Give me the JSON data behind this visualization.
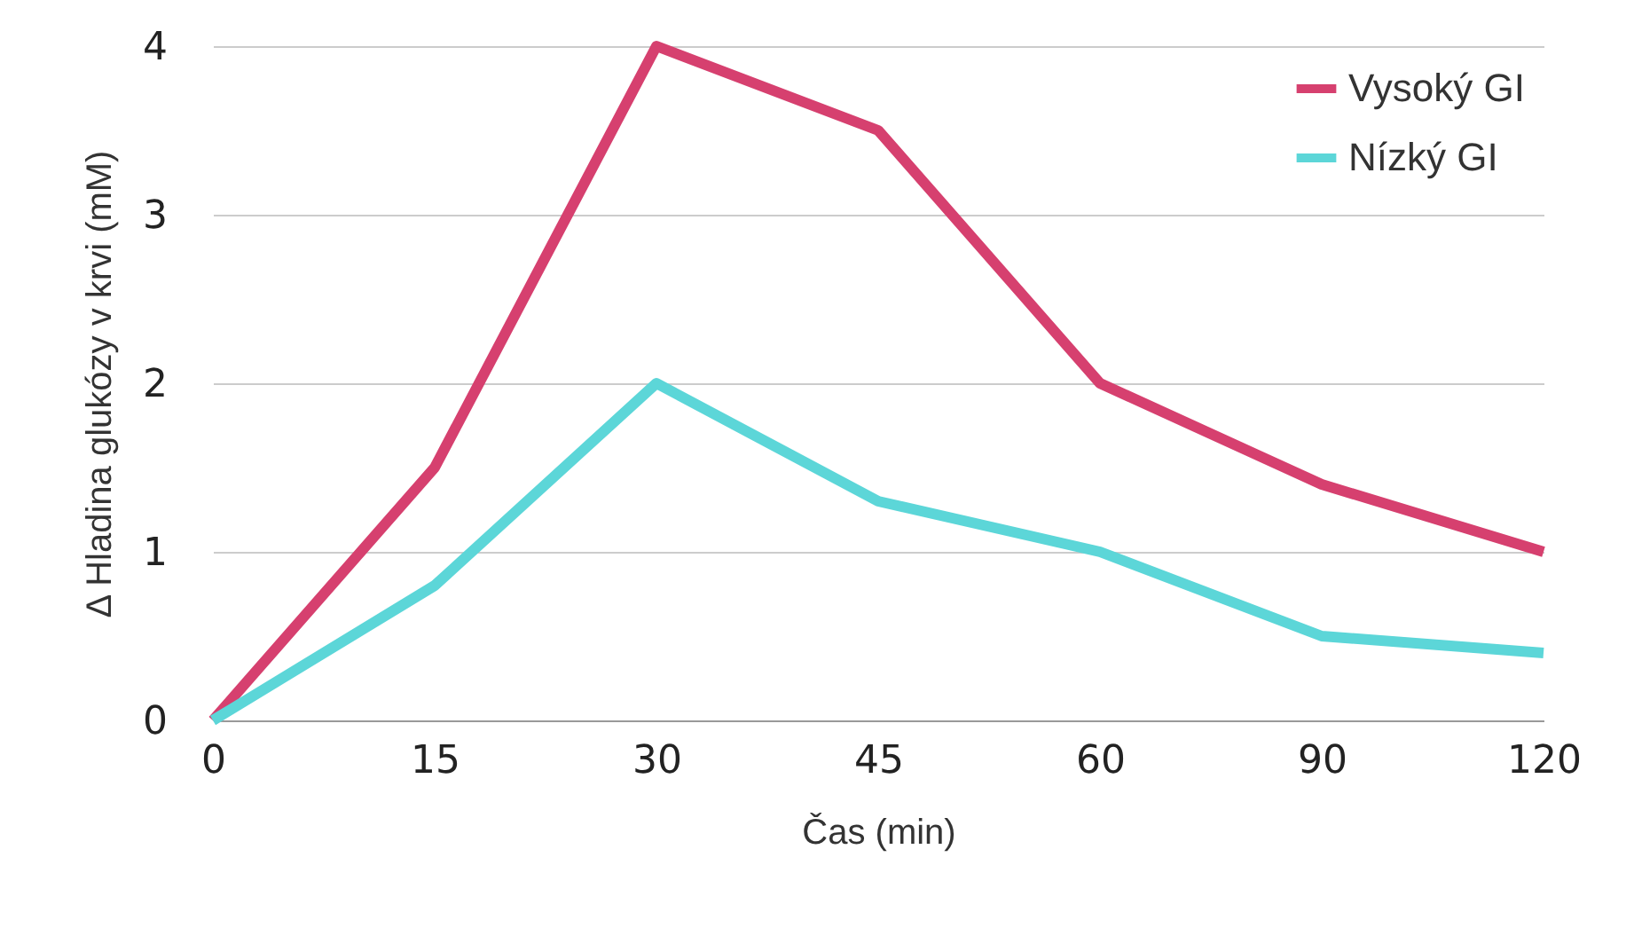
{
  "chart_data": {
    "type": "line",
    "xlabel": "Čas (min)",
    "ylabel": "Δ Hladina glukózy v krvi  (mM)",
    "categories": [
      "0",
      "15",
      "30",
      "45",
      "60",
      "90",
      "120"
    ],
    "series": [
      {
        "name": "Vysoký GI",
        "color": "#d6406f",
        "values": [
          0,
          1.5,
          4,
          3.5,
          2,
          1.4,
          1.0
        ]
      },
      {
        "name": "Nízký GI",
        "color": "#5cd6d8",
        "values": [
          0,
          0.8,
          2,
          1.3,
          1.0,
          0.5,
          0.4
        ]
      }
    ],
    "ylim": [
      0,
      4
    ],
    "yticks": [
      0,
      1,
      2,
      3,
      4
    ],
    "grid": "y",
    "legend": "top right",
    "marker": "none",
    "line_style": "solid"
  }
}
